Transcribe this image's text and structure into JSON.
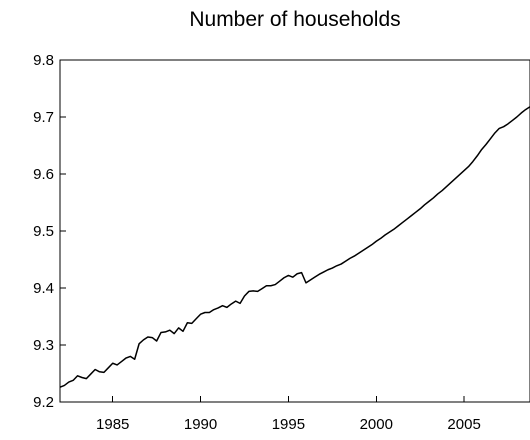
{
  "chart_data": {
    "type": "line",
    "title": "Number of households",
    "xlabel": "",
    "ylabel": "",
    "xlim": [
      1982.0,
      2008.75
    ],
    "ylim": [
      9.2,
      9.8
    ],
    "x_ticks": [
      1985,
      1990,
      1995,
      2000,
      2005
    ],
    "x_tick_labels": [
      "1985",
      "1990",
      "1995",
      "2000",
      "2005"
    ],
    "y_ticks": [
      9.2,
      9.3,
      9.4,
      9.5,
      9.6,
      9.7,
      9.8
    ],
    "y_tick_labels": [
      "9.2",
      "9.3",
      "9.4",
      "9.5",
      "9.6",
      "9.7",
      "9.8"
    ],
    "grid": false,
    "legend": "none",
    "series": [
      {
        "color": "#000000",
        "x": [
          1982.0,
          1982.25,
          1982.5,
          1982.75,
          1983.0,
          1983.25,
          1983.5,
          1983.75,
          1984.0,
          1984.25,
          1984.5,
          1984.75,
          1985.0,
          1985.25,
          1985.5,
          1985.75,
          1986.0,
          1986.25,
          1986.5,
          1986.75,
          1987.0,
          1987.25,
          1987.5,
          1987.75,
          1988.0,
          1988.25,
          1988.5,
          1988.75,
          1989.0,
          1989.25,
          1989.5,
          1989.75,
          1990.0,
          1990.25,
          1990.5,
          1990.75,
          1991.0,
          1991.25,
          1991.5,
          1991.75,
          1992.0,
          1992.25,
          1992.5,
          1992.75,
          1993.0,
          1993.25,
          1993.5,
          1993.75,
          1994.0,
          1994.25,
          1994.5,
          1994.75,
          1995.0,
          1995.25,
          1995.5,
          1995.75,
          1996.0,
          1996.25,
          1996.5,
          1996.75,
          1997.0,
          1997.25,
          1997.5,
          1997.75,
          1998.0,
          1998.25,
          1998.5,
          1998.75,
          1999.0,
          1999.25,
          1999.5,
          1999.75,
          2000.0,
          2000.25,
          2000.5,
          2000.75,
          2001.0,
          2001.25,
          2001.5,
          2001.75,
          2002.0,
          2002.25,
          2002.5,
          2002.75,
          2003.0,
          2003.25,
          2003.5,
          2003.75,
          2004.0,
          2004.25,
          2004.5,
          2004.75,
          2005.0,
          2005.25,
          2005.5,
          2005.75,
          2006.0,
          2006.25,
          2006.5,
          2006.75,
          2007.0,
          2007.25,
          2007.5,
          2007.75,
          2008.0,
          2008.25,
          2008.5,
          2008.75
        ],
        "y": [
          9.226,
          9.229,
          9.235,
          9.238,
          9.246,
          9.243,
          9.241,
          9.249,
          9.257,
          9.253,
          9.252,
          9.26,
          9.268,
          9.265,
          9.271,
          9.277,
          9.28,
          9.275,
          9.302,
          9.309,
          9.314,
          9.313,
          9.307,
          9.322,
          9.323,
          9.326,
          9.32,
          9.33,
          9.324,
          9.339,
          9.338,
          9.346,
          9.354,
          9.357,
          9.357,
          9.362,
          9.365,
          9.369,
          9.366,
          9.372,
          9.377,
          9.373,
          9.386,
          9.394,
          9.395,
          9.394,
          9.399,
          9.404,
          9.404,
          9.406,
          9.412,
          9.418,
          9.422,
          9.419,
          9.425,
          9.427,
          9.409,
          9.414,
          9.419,
          9.424,
          9.428,
          9.432,
          9.435,
          9.439,
          9.442,
          9.447,
          9.452,
          9.456,
          9.461,
          9.466,
          9.471,
          9.476,
          9.482,
          9.487,
          9.493,
          9.498,
          9.503,
          9.509,
          9.515,
          9.521,
          9.527,
          9.533,
          9.539,
          9.546,
          9.552,
          9.558,
          9.565,
          9.571,
          9.578,
          9.585,
          9.592,
          9.599,
          9.606,
          9.613,
          9.622,
          9.632,
          9.643,
          9.652,
          9.662,
          9.672,
          9.68,
          9.683,
          9.688,
          9.694,
          9.7,
          9.707,
          9.713,
          9.718
        ]
      }
    ]
  }
}
